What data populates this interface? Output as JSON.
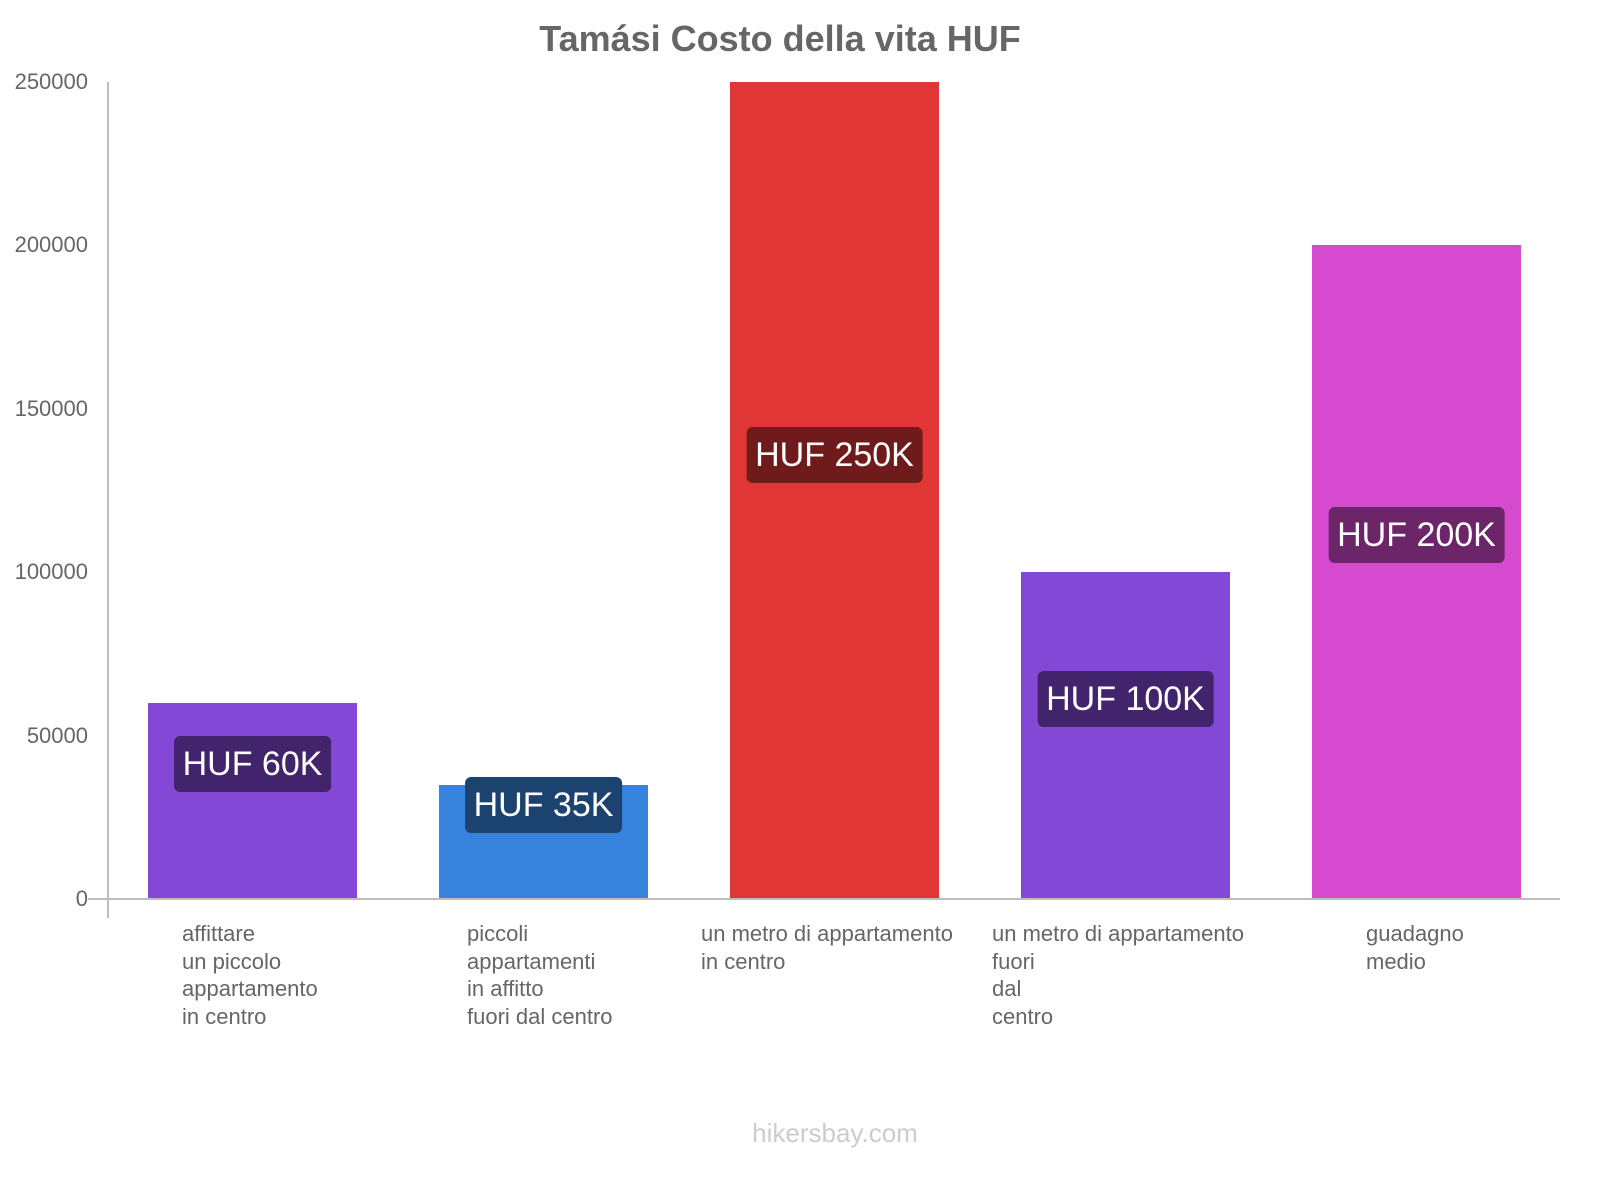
{
  "chart_data": {
    "type": "bar",
    "title": "Tamási Costo della vita HUF",
    "xlabel": "",
    "ylabel": "",
    "ylim": [
      0,
      250000
    ],
    "yticks": [
      "0",
      "50000",
      "100000",
      "150000",
      "200000",
      "250000"
    ],
    "grid": false,
    "legend": null,
    "categories": [
      "affittare\nun piccolo\nappartamento\nin centro",
      "piccoli\nappartamenti\nin affitto\nfuori dal centro",
      "un metro di appartamento\nin centro",
      "un metro di appartamento\nfuori\ndal\ncentro",
      "guadagno\nmedio"
    ],
    "values": [
      60000,
      35000,
      250000,
      100000,
      200000
    ],
    "data_labels": [
      "HUF 60K",
      "HUF 35K",
      "HUF 250K",
      "HUF 100K",
      "HUF 200K"
    ],
    "colors": [
      "#8349d6",
      "#3783de",
      "#e03636",
      "#8349d6",
      "#d64ad0"
    ],
    "label_bg_colors": [
      "#41246b",
      "#1c426f",
      "#701b1b",
      "#41246b",
      "#6b2568"
    ]
  },
  "footer": {
    "source": "hikersbay.com"
  }
}
